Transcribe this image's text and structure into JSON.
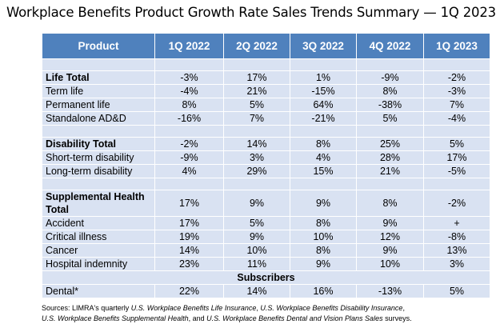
{
  "title": "Workplace Benefits Product Growth Rate Sales Trends Summary — 1Q 2023",
  "table": {
    "header": [
      "Product",
      "1Q 2022",
      "2Q 2022",
      "3Q 2022",
      "4Q 2022",
      "1Q 2023"
    ],
    "life": [
      {
        "label": "Life Total",
        "values": [
          "-3%",
          "17%",
          "1%",
          "-9%",
          "-2%"
        ]
      },
      {
        "label": "Term life",
        "values": [
          "-4%",
          "21%",
          "-15%",
          "8%",
          "-3%"
        ]
      },
      {
        "label": "Permanent life",
        "values": [
          "8%",
          "5%",
          "64%",
          "-38%",
          "7%"
        ]
      },
      {
        "label": "Standalone AD&D",
        "values": [
          "-16%",
          "7%",
          "-21%",
          "5%",
          "-4%"
        ]
      }
    ],
    "disability": [
      {
        "label": "Disability Total",
        "values": [
          "-2%",
          "14%",
          "8%",
          "25%",
          "5%"
        ]
      },
      {
        "label": "Short-term disability",
        "values": [
          "-9%",
          "3%",
          "4%",
          "28%",
          "17%"
        ]
      },
      {
        "label": "Long-term disability",
        "values": [
          "4%",
          "29%",
          "15%",
          "21%",
          "-5%"
        ]
      }
    ],
    "supplemental": [
      {
        "label": "Supplemental Health Total",
        "values": [
          "17%",
          "9%",
          "9%",
          "8%",
          "-2%"
        ]
      },
      {
        "label": "Accident",
        "values": [
          "17%",
          "5%",
          "8%",
          "9%",
          "+"
        ]
      },
      {
        "label": "Critical illness",
        "values": [
          "19%",
          "9%",
          "10%",
          "12%",
          "-8%"
        ]
      },
      {
        "label": "Cancer",
        "values": [
          "14%",
          "10%",
          "8%",
          "9%",
          "13%"
        ]
      },
      {
        "label": "Hospital indemnity",
        "values": [
          "23%",
          "11%",
          "9%",
          "10%",
          "3%"
        ]
      }
    ],
    "subscribers_label": "Subscribers",
    "dental": {
      "label": "Dental*",
      "values": [
        "22%",
        "14%",
        "16%",
        "-13%",
        "5%"
      ]
    }
  },
  "source": {
    "prefix": "Sources: LIMRA's quarterly ",
    "t1": "U.S. Workplace Benefits Life Insurance",
    "sep1": ", ",
    "t2": "U.S. Workplace Benefits Disability Insurance",
    "sep2": ",",
    "t3": "U.S. Workplace Benefits Supplemental Health",
    "sep3": ", and ",
    "t4": "U.S. Workplace Benefits Dental and Vision Plans Sales",
    "suffix": " surveys."
  }
}
